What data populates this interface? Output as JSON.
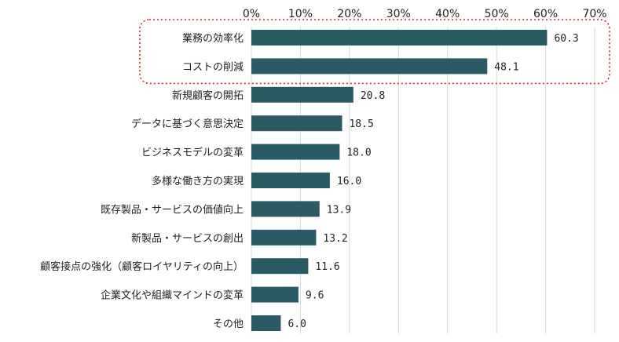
{
  "chart_data": {
    "type": "bar",
    "orientation": "horizontal",
    "categories": [
      "業務の効率化",
      "コストの削減",
      "新規顧客の開拓",
      "データに基づく意思決定",
      "ビジネスモデルの変革",
      "多様な働き方の実現",
      "既存製品・サービスの価値向上",
      "新製品・サービスの創出",
      "顧客接点の強化（顧客ロイヤリティの向上）",
      "企業文化や組織マインドの変革",
      "その他"
    ],
    "values": [
      60.3,
      48.1,
      20.8,
      18.5,
      18.0,
      16.0,
      13.9,
      13.2,
      11.6,
      9.6,
      6.0
    ],
    "value_labels": [
      "60.3",
      "48.1",
      "20.8",
      "18.5",
      "18.0",
      "16.0",
      "13.9",
      "13.2",
      "11.6",
      "9.6",
      "6.0"
    ],
    "xlim": [
      0,
      70
    ],
    "ticks": [
      0,
      10,
      20,
      30,
      40,
      50,
      60,
      70
    ],
    "tick_labels": [
      "0%",
      "10%",
      "20%",
      "30%",
      "40%",
      "50%",
      "60%",
      "70%"
    ],
    "axis_position": "top",
    "grid": true,
    "highlight": {
      "categories": [
        "業務の効率化",
        "コストの削減"
      ],
      "style": "dotted-rounded-box",
      "color": "#d9262c"
    },
    "colors": {
      "bar": "#2a5a64",
      "grid": "#d9d9d9",
      "text": "#222222"
    }
  }
}
